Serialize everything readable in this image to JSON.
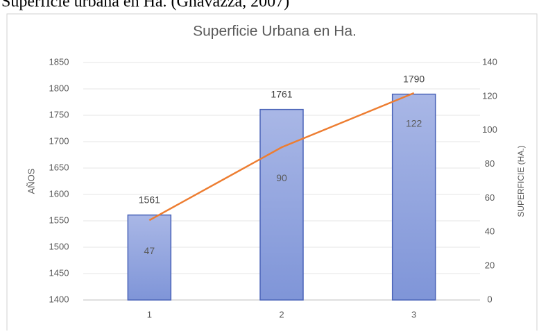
{
  "caption": "Superficie urbana en Ha. (Gnavazza, 2007)",
  "chart_data": {
    "type": "bar",
    "title": "Superficie Urbana en Ha.",
    "categories": [
      "1",
      "2",
      "3"
    ],
    "series": [
      {
        "type": "bar",
        "color": "#8fa2dd",
        "values": [
          1561,
          1761,
          1790
        ]
      },
      {
        "type": "line",
        "axis": "y2",
        "color": "#ed7d31",
        "values": [
          47,
          90,
          122
        ]
      }
    ],
    "y_label": "AÑOS",
    "y2_label": "SUPERFICIE (HA.)",
    "ylim": [
      1400,
      1850
    ],
    "yticks": [
      1400,
      1450,
      1500,
      1550,
      1600,
      1650,
      1700,
      1750,
      1800,
      1850
    ],
    "y2lim": [
      0,
      140
    ],
    "y2ticks": [
      0,
      20,
      40,
      60,
      80,
      100,
      120,
      140
    ],
    "grid": true
  }
}
